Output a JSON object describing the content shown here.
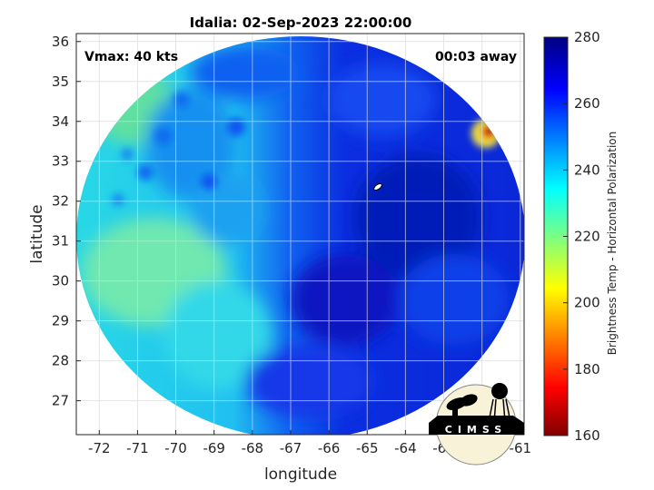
{
  "chart_data": {
    "type": "heatmap",
    "title": "Idalia: 02-Sep-2023 22:00:00",
    "xlabel": "longitude",
    "ylabel": "latitude",
    "xlim": [
      -72.6,
      -60.9
    ],
    "ylim": [
      26.15,
      36.2
    ],
    "xticks": [
      "-72",
      "-71",
      "-70",
      "-69",
      "-68",
      "-67",
      "-66",
      "-65",
      "-64",
      "-63",
      "-62",
      "-61"
    ],
    "xtick_values": [
      -72,
      -71,
      -70,
      -69,
      -68,
      -67,
      -66,
      -65,
      -64,
      -63,
      -62,
      -61
    ],
    "yticks": [
      "27",
      "28",
      "29",
      "30",
      "31",
      "32",
      "33",
      "34",
      "35",
      "36"
    ],
    "ytick_values": [
      27,
      28,
      29,
      30,
      31,
      32,
      33,
      34,
      35,
      36
    ],
    "grid": true,
    "colormap": "jet",
    "colorbar": {
      "label": "Brightness Temp - Horizontal Polarization",
      "range": [
        160,
        280
      ],
      "ticks": [
        "160",
        "180",
        "200",
        "220",
        "240",
        "260",
        "280"
      ],
      "tick_values": [
        160,
        180,
        200,
        220,
        240,
        260,
        280
      ]
    },
    "annotations": {
      "vmax": "Vmax: 40 kts",
      "away": "00:03 away"
    },
    "storm_center": {
      "lon": -64.8,
      "lat": 32.35
    },
    "logo_text": "CIMSS"
  }
}
